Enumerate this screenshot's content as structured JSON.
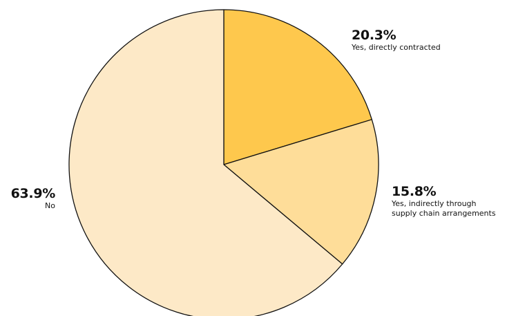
{
  "chart_data": {
    "type": "pie",
    "title": "",
    "start_angle": "12 o'clock",
    "direction": "clockwise",
    "slices": [
      {
        "label": "Yes, directly contracted",
        "value": 20.3,
        "value_label": "20.3%",
        "color": "#fec84d"
      },
      {
        "label": "Yes, indirectly through supply chain arrangements",
        "value": 15.8,
        "value_label": "15.8%",
        "color": "#fedd99"
      },
      {
        "label": "No",
        "value": 63.9,
        "value_label": "63.9%",
        "color": "#fde9c7"
      }
    ],
    "stroke_color": "#111111"
  }
}
